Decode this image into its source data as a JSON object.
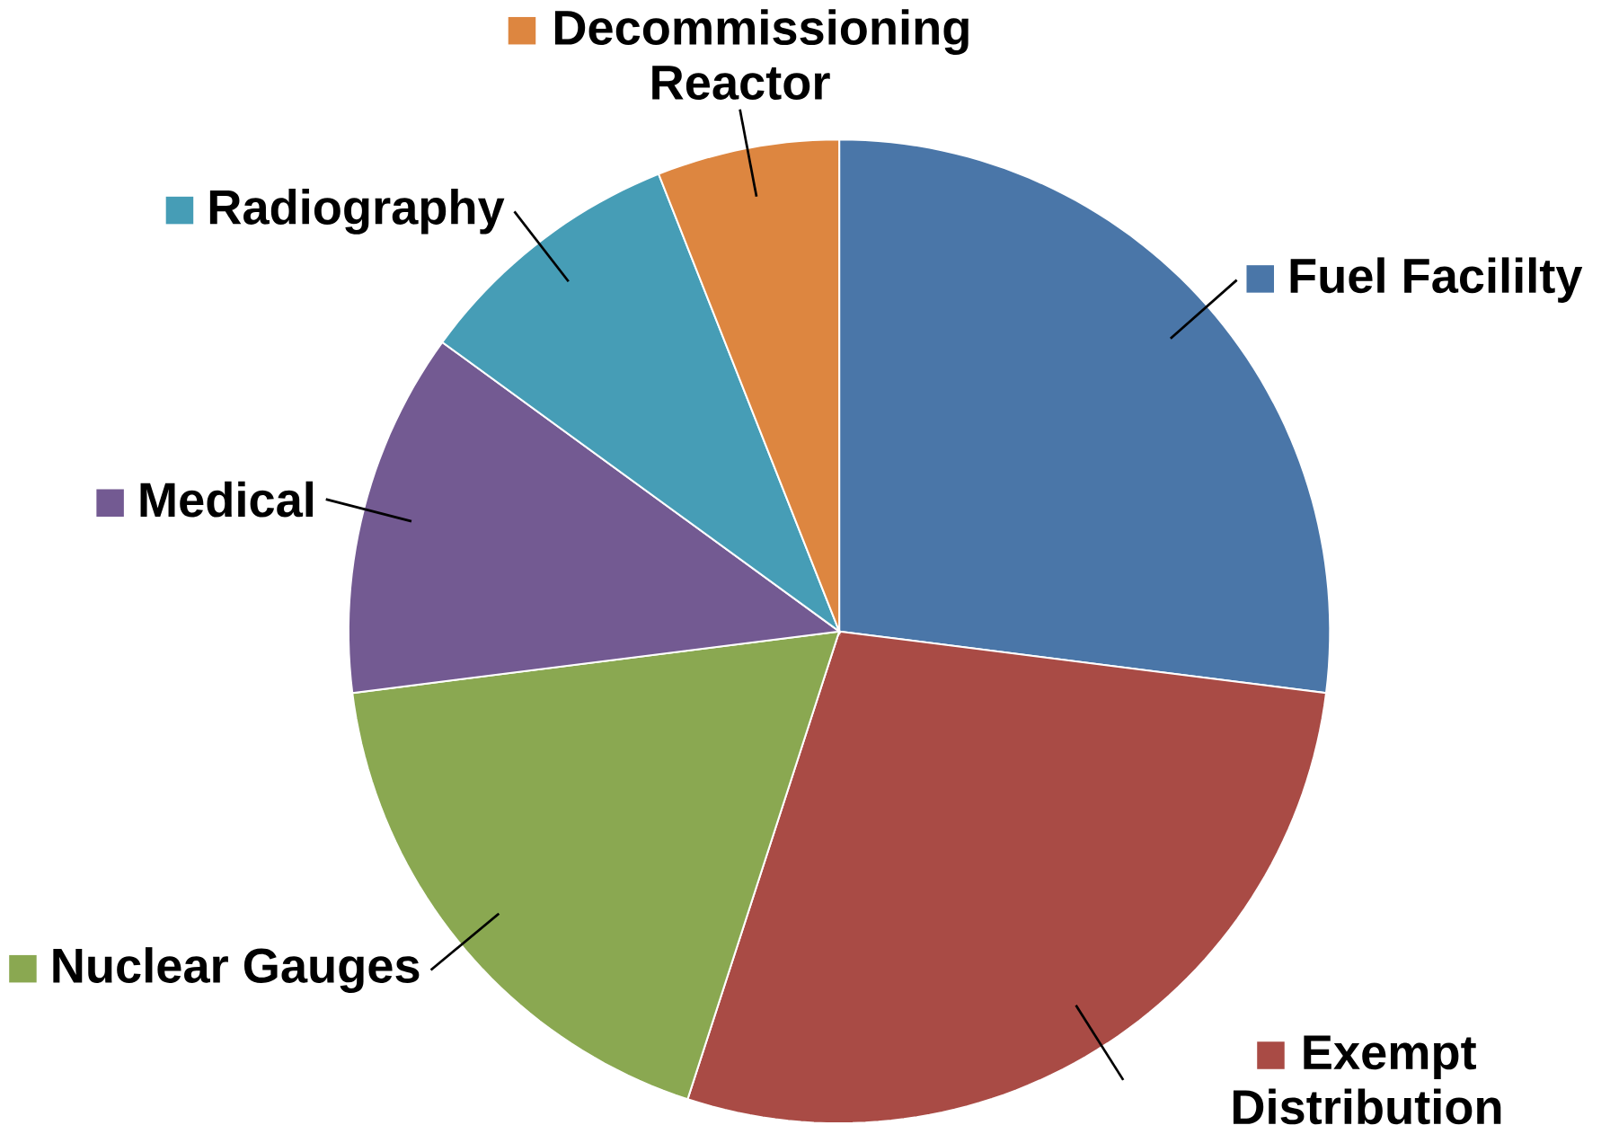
{
  "chart_data": {
    "type": "pie",
    "categories": [
      "Fuel Facililty",
      "Exempt Distribution",
      "Nuclear Gauges",
      "Medical",
      "Radiography",
      "Decommissioning Reactor"
    ],
    "values": [
      27,
      28,
      18,
      12,
      9,
      6
    ],
    "colors": [
      "#4a76a8",
      "#a94b45",
      "#8aa851",
      "#735a92",
      "#469db6",
      "#dd8640"
    ],
    "legend": "right"
  }
}
